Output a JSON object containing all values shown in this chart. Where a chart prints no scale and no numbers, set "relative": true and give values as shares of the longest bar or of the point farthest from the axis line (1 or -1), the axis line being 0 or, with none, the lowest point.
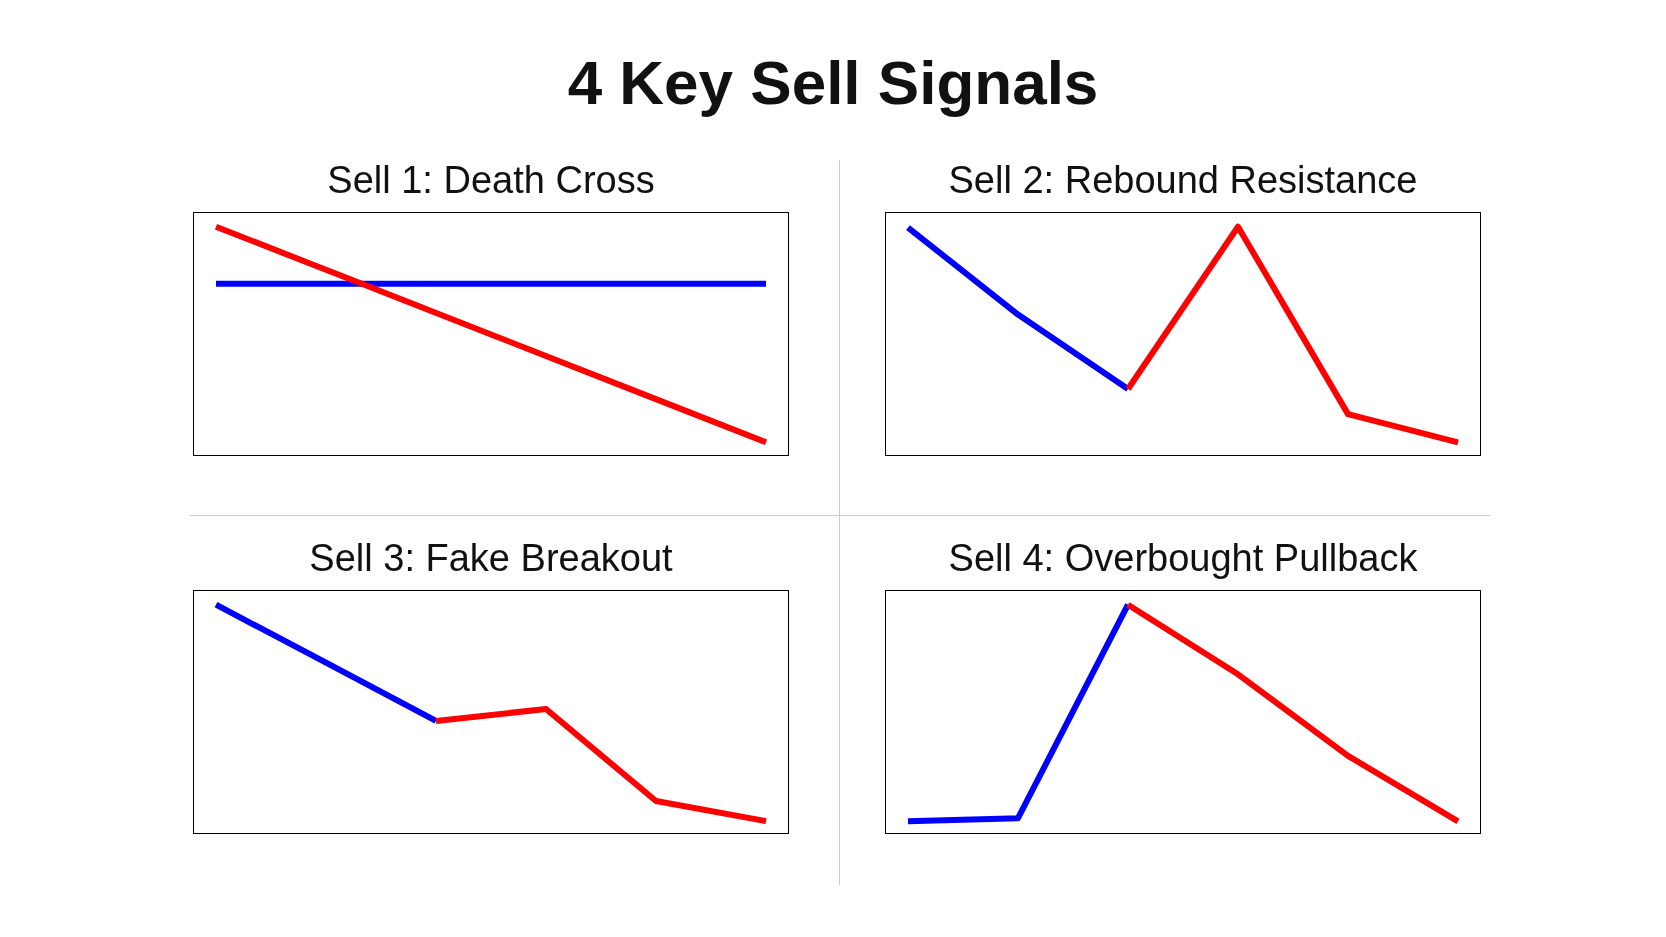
{
  "chart_data": [
    {
      "type": "other",
      "title": "4 Key Sell Signals"
    },
    {
      "type": "line",
      "title": "Sell 1: Death Cross",
      "relative": true,
      "categories": [
        null,
        null,
        null,
        null,
        null
      ],
      "series": [
        {
          "color": "#0000ff",
          "values": [
            0.75,
            0.75,
            0.75,
            0.75,
            0.75
          ]
        },
        {
          "color": "#ff0000",
          "values": [
            1,
            0.764,
            0.528,
            0.292,
            0.056
          ]
        }
      ]
    },
    {
      "type": "line",
      "title": "Sell 2: Rebound Resistance",
      "relative": true,
      "categories": [
        null,
        null,
        null,
        null,
        null,
        null
      ],
      "series": [
        {
          "color": "#0000ff",
          "values": [
            0.996,
            0.615,
            0.289,
            null,
            null,
            null
          ]
        },
        {
          "color": "#ff0000",
          "values": [
            null,
            null,
            0.289,
            1,
            0.179,
            0.055
          ]
        }
      ]
    },
    {
      "type": "line",
      "title": "Sell 3: Fake Breakout",
      "relative": true,
      "categories": [
        null,
        null,
        null,
        null,
        null,
        null
      ],
      "series": [
        {
          "color": "#0000ff",
          "values": [
            1,
            0.746,
            0.491,
            null,
            null,
            null
          ]
        },
        {
          "color": "#ff0000",
          "values": [
            null,
            null,
            0.491,
            0.543,
            0.14,
            0.052
          ]
        }
      ]
    },
    {
      "type": "line",
      "title": "Sell 4: Overbought Pullback",
      "relative": true,
      "categories": [
        null,
        null,
        null,
        null,
        null,
        null
      ],
      "series": [
        {
          "color": "#0000ff",
          "values": [
            0.051,
            0.065,
            1,
            null,
            null,
            null
          ]
        },
        {
          "color": "#ff0000",
          "values": [
            null,
            null,
            1,
            0.695,
            0.338,
            0.051
          ]
        }
      ]
    }
  ]
}
